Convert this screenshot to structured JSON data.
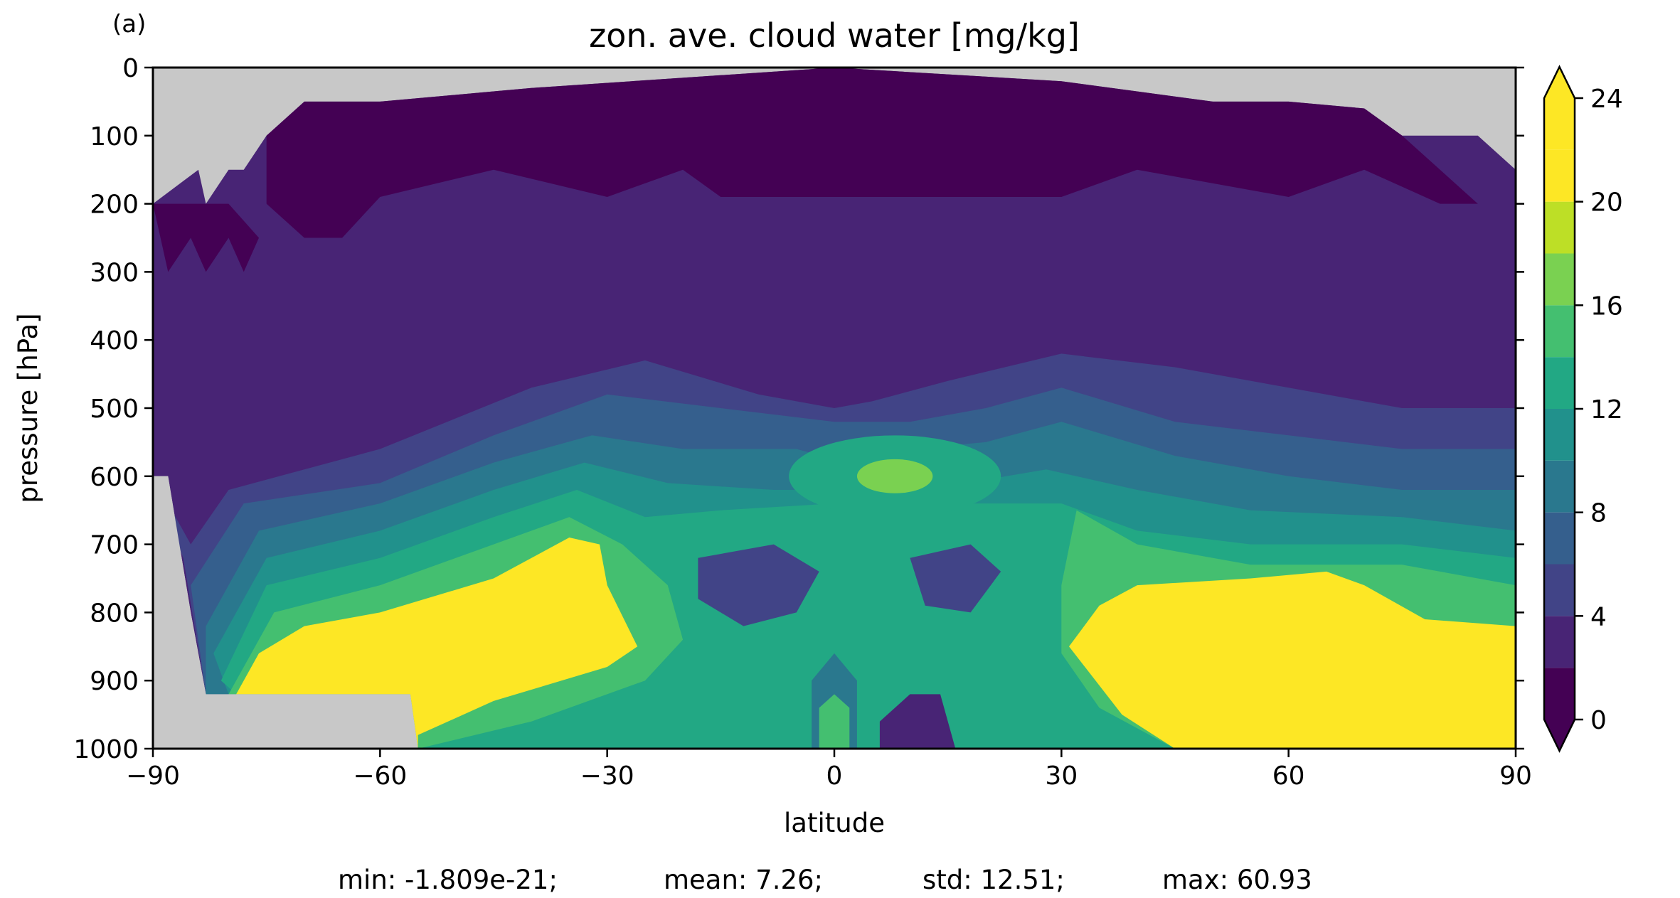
{
  "panel_label": "(a)",
  "stats": {
    "min": "min: -1.809e-21;",
    "mean": "mean: 7.26;",
    "std": "std: 12.51;",
    "max": "max: 60.93"
  },
  "chart_data": {
    "type": "heatmap",
    "title": "zon. ave. cloud water [mg/kg]",
    "xlabel": "latitude",
    "ylabel": "pressure [hPa]",
    "xlim": [
      -90,
      90
    ],
    "ylim": [
      1000,
      0
    ],
    "y_inverted": true,
    "xticks": [
      -90,
      -60,
      -30,
      0,
      30,
      60,
      90
    ],
    "xtick_labels": [
      "−90",
      "−60",
      "−30",
      "0",
      "30",
      "60",
      "90"
    ],
    "yticks": [
      0,
      100,
      200,
      300,
      400,
      500,
      600,
      700,
      800,
      900,
      1000
    ],
    "ytick_labels": [
      "0",
      "100",
      "200",
      "300",
      "400",
      "500",
      "600",
      "700",
      "800",
      "900",
      "1000"
    ],
    "colorbar": {
      "levels": [
        0,
        2,
        4,
        6,
        8,
        10,
        12,
        14,
        16,
        18,
        20,
        22,
        24
      ],
      "colors": [
        "#440154",
        "#482475",
        "#414487",
        "#355f8d",
        "#2a788e",
        "#21918c",
        "#22a884",
        "#44bf70",
        "#7ad151",
        "#bddf26",
        "#fde725"
      ],
      "under_color": "#440154",
      "over_color": "#fde725",
      "extend": "both",
      "ticks": [
        0,
        4,
        8,
        12,
        16,
        20,
        24
      ],
      "tick_labels": [
        "0",
        "4",
        "8",
        "12",
        "16",
        "20",
        "24"
      ]
    },
    "missing_color": "#c8c8c8",
    "grid": false,
    "field_estimate": {
      "description_units": "mg/kg",
      "features": [
        {
          "lat_range": [
            -75,
            -30
          ],
          "p_range": [
            680,
            1000
          ],
          "value": "over 24"
        },
        {
          "lat_range": [
            30,
            90
          ],
          "p_range": [
            740,
            1000
          ],
          "value": "over 24"
        },
        {
          "lat": 8,
          "p": 600,
          "value": 20
        },
        {
          "lat": 0,
          "p": 970,
          "value": 18
        }
      ]
    }
  }
}
